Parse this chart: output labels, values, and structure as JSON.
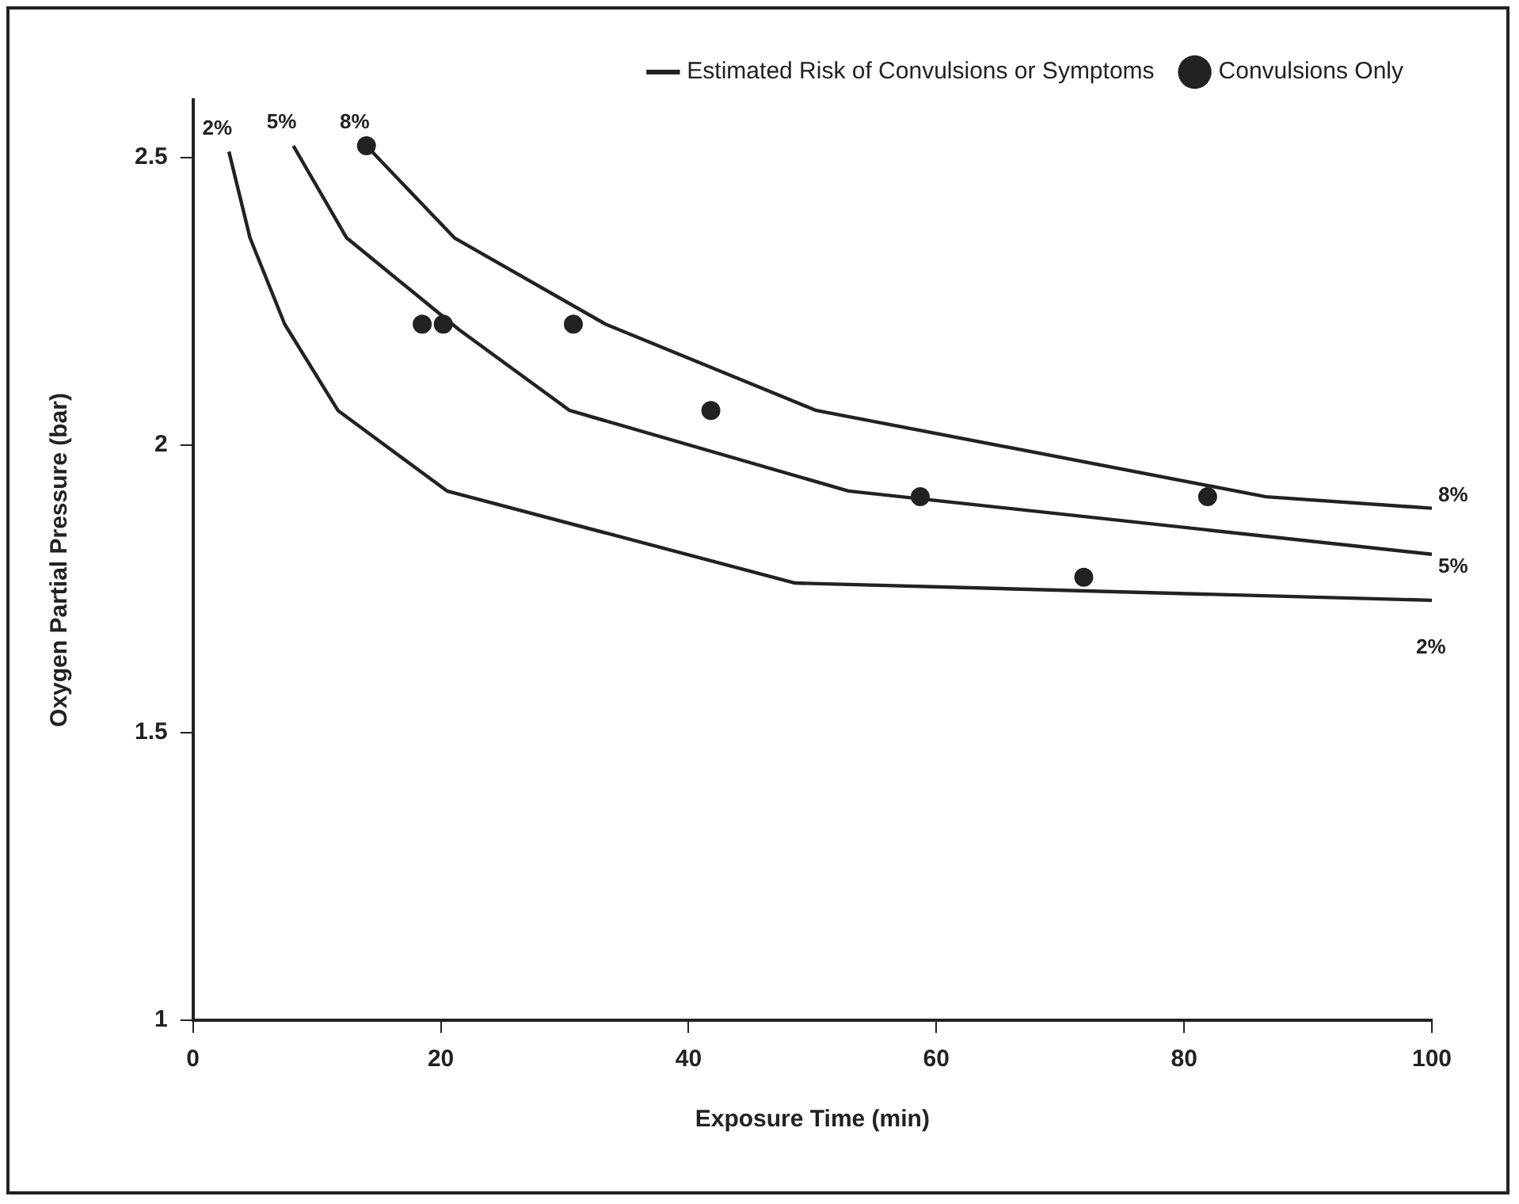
{
  "chart_data": {
    "type": "line",
    "xlabel": "Exposure Time (min)",
    "ylabel": "Oxygen Partial Pressure (bar)",
    "legend_title": "Estimated Risk of Convulsions or Symptoms",
    "legend": "top right",
    "grid": false,
    "xlim": [
      0,
      100
    ],
    "ylim": [
      1,
      2.6
    ],
    "xticks": [
      0,
      20,
      40,
      60,
      80,
      100
    ],
    "yticks": [
      1,
      1.5,
      2,
      2.5
    ],
    "line_style": "solid",
    "series": [
      {
        "name": "2%",
        "color": "#222222",
        "marker": "none",
        "x": [
          2.9,
          4.6,
          7.4,
          11.7,
          20.5,
          48.6,
          100
        ],
        "values": [
          2.51,
          2.36,
          2.21,
          2.06,
          1.92,
          1.76,
          1.73
        ]
      },
      {
        "name": "5%",
        "color": "#222222",
        "marker": "none",
        "x": [
          8.1,
          12.4,
          21.5,
          30.4,
          52.9,
          100
        ],
        "values": [
          2.52,
          2.36,
          2.2,
          2.06,
          1.92,
          1.81
        ]
      },
      {
        "name": "8%",
        "color": "#222222",
        "marker": "none",
        "x": [
          14,
          21.1,
          33.3,
          50.3,
          86.6,
          100
        ],
        "values": [
          2.52,
          2.36,
          2.21,
          2.06,
          1.91,
          1.89
        ]
      },
      {
        "name": "Convulsions Only",
        "type": "scatter",
        "color": "#222222",
        "marker": "circle",
        "x": [
          14,
          18.5,
          20.2,
          30.7,
          41.8,
          58.7,
          71.9,
          81.9
        ],
        "values": [
          2.52,
          2.21,
          2.21,
          2.21,
          2.06,
          1.91,
          1.77,
          1.91
        ]
      }
    ]
  }
}
